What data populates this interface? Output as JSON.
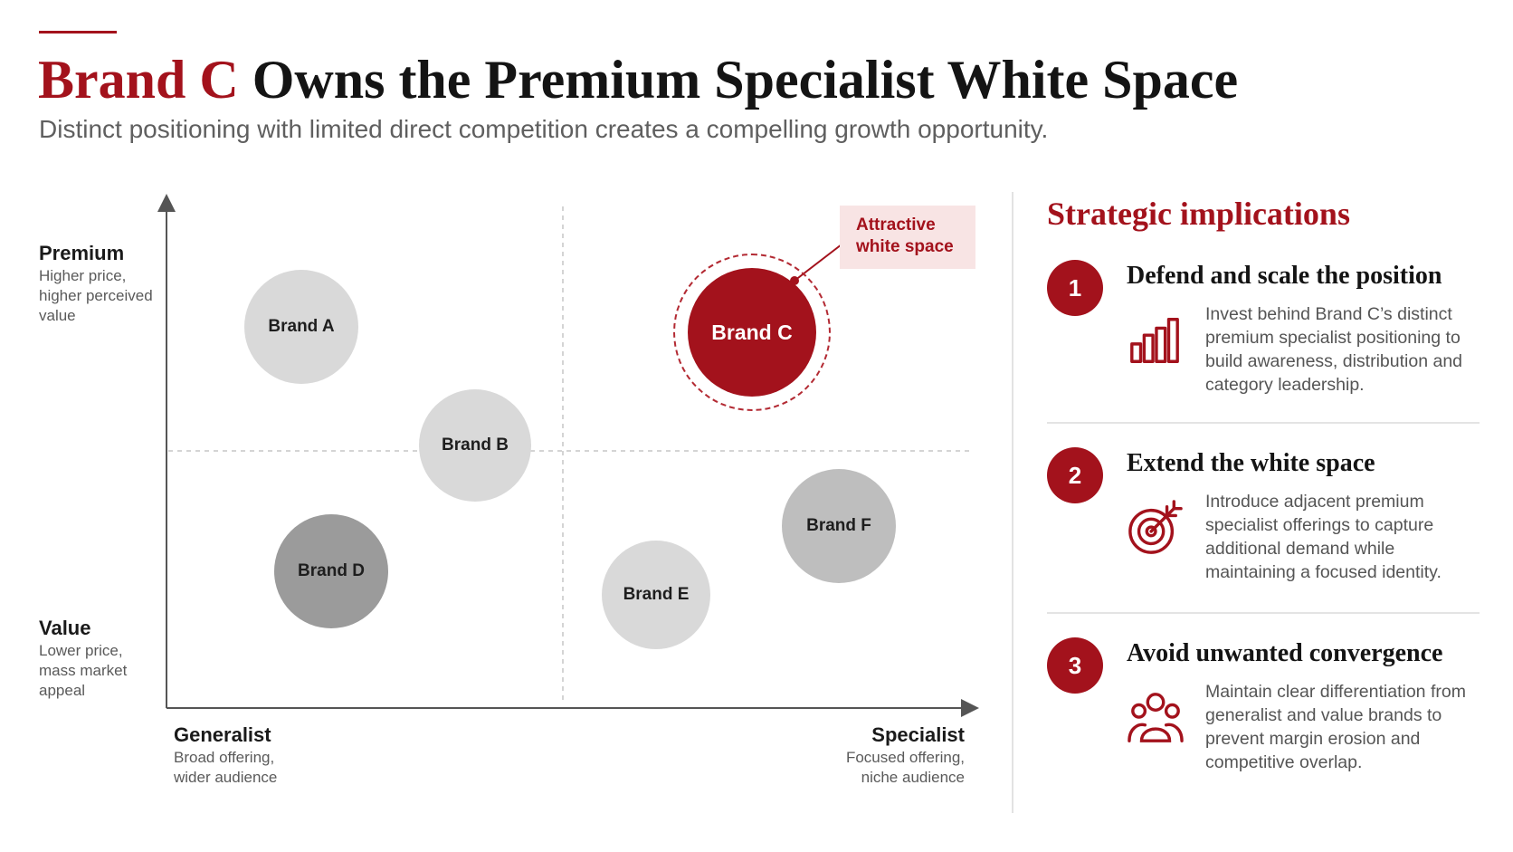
{
  "header": {
    "title_highlight": "Brand C",
    "title_rest": " Owns the Premium Specialist White Space",
    "subtitle": "Distinct positioning with limited direct competition creates a compelling growth opportunity."
  },
  "map": {
    "y_axis": {
      "top_label": "Premium",
      "top_desc": "Higher price, higher perceived value",
      "bottom_label": "Value",
      "bottom_desc": "Lower price, mass market appeal"
    },
    "x_axis": {
      "left_label": "Generalist",
      "left_desc": "Broad offering, wider audience",
      "right_label": "Specialist",
      "right_desc": "Focused offering, niche audience"
    },
    "brands": [
      {
        "name": "Brand A",
        "tone": "light"
      },
      {
        "name": "Brand B",
        "tone": "light"
      },
      {
        "name": "Brand C",
        "tone": "brand-c"
      },
      {
        "name": "Brand D",
        "tone": "dark"
      },
      {
        "name": "Brand E",
        "tone": "light"
      },
      {
        "name": "Brand F",
        "tone": "mid"
      }
    ],
    "callout": "Attractive white space",
    "colors": {
      "accent": "#a3121c",
      "callout_bg": "#f8e4e4"
    }
  },
  "implications": {
    "title": "Strategic implications",
    "items": [
      {
        "number": "1",
        "title": "Defend and scale the position",
        "body": "Invest behind Brand C’s distinct premium specialist positioning to build awareness, distribution and category leadership.",
        "icon": "bar-chart-icon"
      },
      {
        "number": "2",
        "title": "Extend the white space",
        "body": "Introduce adjacent premium specialist offerings to capture additional demand while maintaining a focused identity.",
        "icon": "target-icon"
      },
      {
        "number": "3",
        "title": "Avoid unwanted convergence",
        "body": "Maintain clear differentiation from generalist and value brands to prevent margin erosion and competitive overlap.",
        "icon": "people-icon"
      }
    ]
  }
}
